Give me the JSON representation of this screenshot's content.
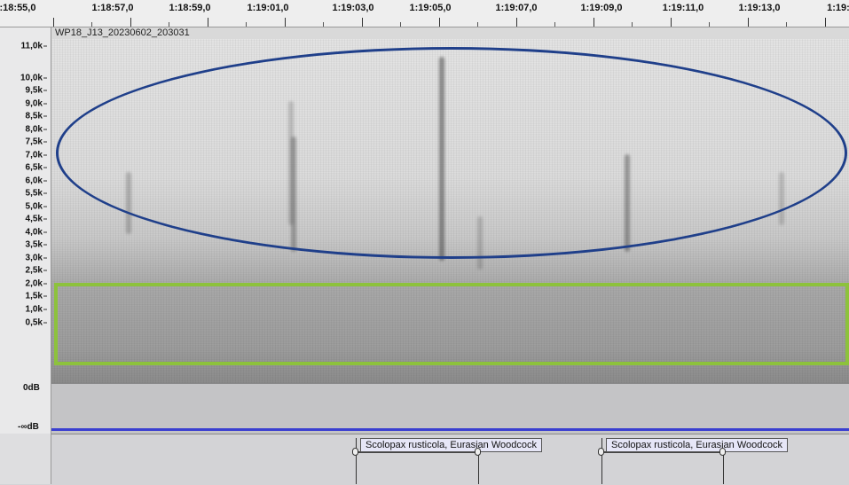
{
  "timeline": {
    "ticks": [
      ":18:55,0",
      "1:18:57,0",
      "1:18:59,0",
      "1:19:01,0",
      "1:19:03,0",
      "1:19:05,0",
      "1:19:07,0",
      "1:19:09,0",
      "1:19:11,0",
      "1:19:13,0",
      "1:19:"
    ]
  },
  "track": {
    "name": "WP18_J13_20230602_203031",
    "freq_labels": [
      "11,0k",
      "10,0k",
      "9,5k",
      "9,0k",
      "8,5k",
      "8,0k",
      "7,5k",
      "7,0k",
      "6,5k",
      "6,0k",
      "5,5k",
      "5,0k",
      "4,5k",
      "4,0k",
      "3,5k",
      "3,0k",
      "2,5k",
      "2,0k",
      "1,5k",
      "1,0k",
      "0,5k"
    ],
    "db_top": "0dB",
    "db_bottom": "-∞dB"
  },
  "labels": [
    {
      "text": "Scolopax rusticola, Eurasian Woodcock"
    },
    {
      "text": "Scolopax rusticola, Eurasian Woodcock"
    }
  ],
  "colors": {
    "ellipse": "#1f3f8a",
    "box": "#8dc23c",
    "waveform": "#3a3fd0"
  }
}
